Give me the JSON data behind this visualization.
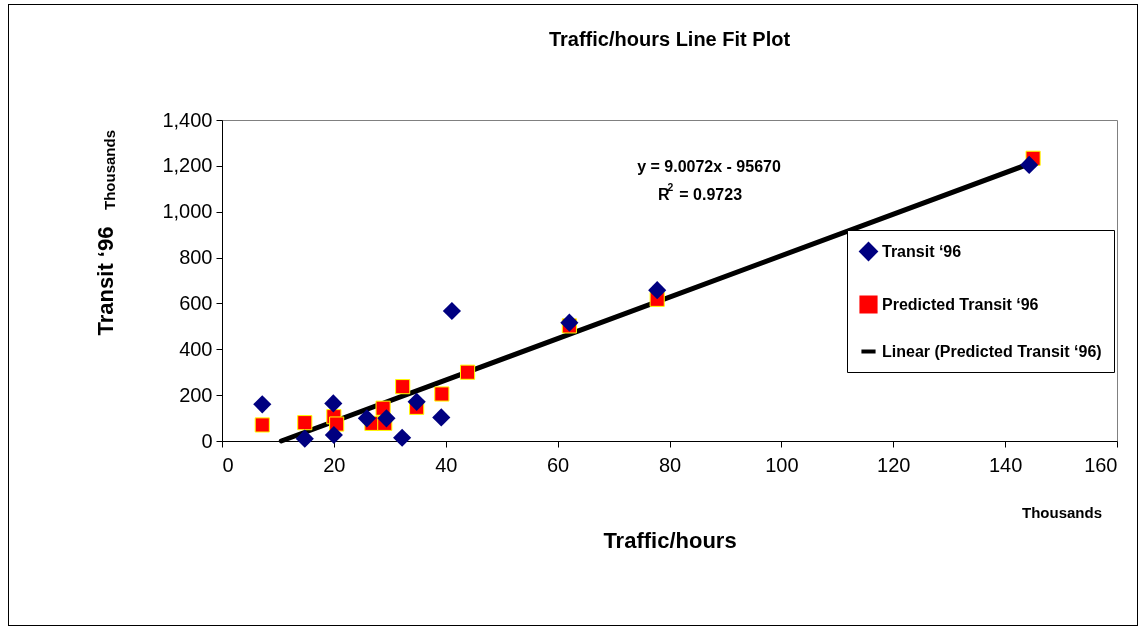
{
  "chart_data": {
    "type": "scatter",
    "title": "Traffic/hours Line Fit Plot",
    "xlabel": "Traffic/hours",
    "ylabel": "Transit ‘96",
    "series": [
      {
        "name": "Transit ‘96",
        "marker": "diamond",
        "color": "#000080",
        "x": [
          7.2,
          14.8,
          19.9,
          20.0,
          25.9,
          29.4,
          32.2,
          34.8,
          39.2,
          41.1,
          62.1,
          77.8,
          144.3
        ],
        "values": [
          160,
          10,
          164,
          26,
          99,
          99,
          14,
          171,
          103,
          567,
          516,
          658,
          1204
        ]
      },
      {
        "name": "Predicted Transit ‘96",
        "marker": "square",
        "color": "#ff0000",
        "x": [
          7.2,
          14.8,
          20.0,
          20.5,
          26.8,
          28.8,
          29.1,
          32.3,
          34.8,
          39.3,
          43.9,
          62.1,
          77.8,
          145.0
        ],
        "values": [
          70,
          80,
          106,
          74,
          77,
          143,
          77,
          237,
          147,
          205,
          300,
          502,
          618,
          1233
        ]
      },
      {
        "name": "Linear (Predicted Transit ‘96)",
        "type": "line",
        "marker": "none",
        "color": "#000000",
        "x": [
          10.6,
          145.0
        ],
        "values": [
          0,
          1215
        ]
      }
    ],
    "xlim": [
      0,
      160
    ],
    "xticks": [
      0,
      20,
      40,
      60,
      80,
      100,
      120,
      140,
      160
    ],
    "ylim": [
      0,
      1400
    ],
    "yticks": [
      0,
      200,
      400,
      600,
      800,
      {
        "value": 1000,
        "label": "1,000"
      },
      {
        "value": 1200,
        "label": "1,200"
      },
      {
        "value": 1400,
        "label": "1,400"
      }
    ],
    "grid": false,
    "legend": "right",
    "annotations": [
      "y = 9.0072x - 95670",
      "R$^{2}$ = 0.9723",
      "Thousands",
      "Thousands"
    ]
  }
}
